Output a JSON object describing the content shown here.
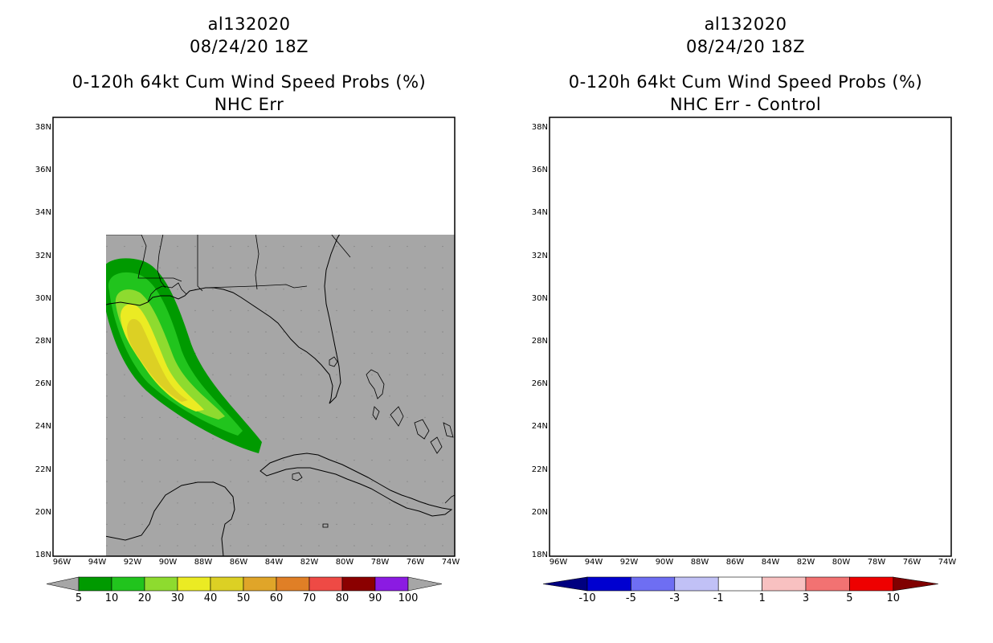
{
  "left_panel": {
    "title_line1": "al132020",
    "title_line2": "08/24/20 18Z",
    "title_line3": "0-120h 64kt Cum Wind Speed Probs (%)",
    "title_line4": "NHC Err"
  },
  "right_panel": {
    "title_line1": "al132020",
    "title_line2": "08/24/20 18Z",
    "title_line3": "0-120h 64kt Cum Wind Speed Probs (%)",
    "title_line4": "NHC Err - Control"
  },
  "lat_labels": [
    "38N",
    "36N",
    "34N",
    "32N",
    "30N",
    "28N",
    "26N",
    "24N",
    "22N",
    "20N",
    "18N"
  ],
  "lon_labels": [
    "96W",
    "94W",
    "92W",
    "90W",
    "88W",
    "86W",
    "84W",
    "82W",
    "80W",
    "78W",
    "76W",
    "74W"
  ],
  "left_colorbar": {
    "labels": [
      "5",
      "10",
      "20",
      "30",
      "40",
      "50",
      "60",
      "70",
      "80",
      "90",
      "100"
    ],
    "colors": [
      "#009a00",
      "#21c41d",
      "#8edb2f",
      "#ebeb23",
      "#dcd024",
      "#e0a529",
      "#e07f26",
      "#ee4a45",
      "#8b0000",
      "#8b1be2"
    ]
  },
  "right_colorbar": {
    "labels": [
      "-10",
      "-5",
      "-3",
      "-1",
      "1",
      "3",
      "5",
      "10"
    ],
    "colors": [
      "#0000d0",
      "#6e6ef3",
      "#c1c1f6",
      "#ffffff",
      "#f8c1c1",
      "#f27272",
      "#ee0000"
    ],
    "low_color": "#000080",
    "high_color": "#800000"
  }
}
